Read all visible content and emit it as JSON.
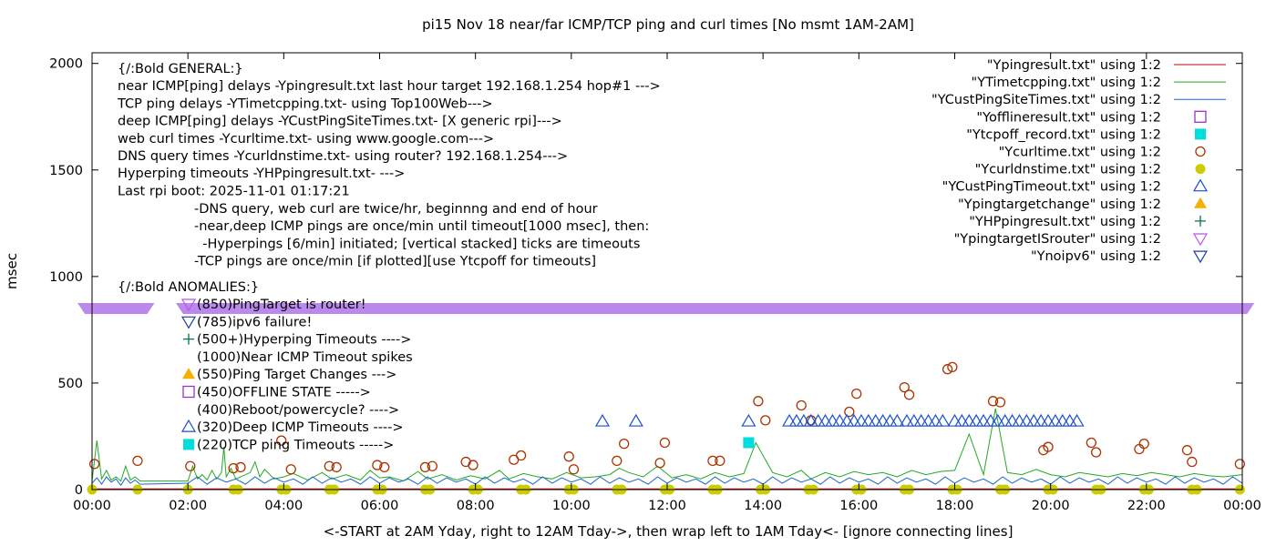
{
  "chart_data": {
    "type": "line",
    "title": "pi15 Nov 18  near/far ICMP/TCP ping and curl times [No msmt 1AM-2AM]",
    "xlabel": "<-START at 2AM Yday, right to 12AM Tday->, then wrap left to 1AM Tday<- [ignore connecting lines]",
    "ylabel": "msec",
    "xlim": [
      0,
      24
    ],
    "ylim": [
      0,
      2050
    ],
    "x_ticks": [
      {
        "v": 0,
        "label": "00:00"
      },
      {
        "v": 2,
        "label": "02:00"
      },
      {
        "v": 4,
        "label": "04:00"
      },
      {
        "v": 6,
        "label": "06:00"
      },
      {
        "v": 8,
        "label": "08:00"
      },
      {
        "v": 10,
        "label": "10:00"
      },
      {
        "v": 12,
        "label": "12:00"
      },
      {
        "v": 14,
        "label": "14:00"
      },
      {
        "v": 16,
        "label": "16:00"
      },
      {
        "v": 18,
        "label": "18:00"
      },
      {
        "v": 20,
        "label": "20:00"
      },
      {
        "v": 22,
        "label": "22:00"
      },
      {
        "v": 24,
        "label": "00:00"
      }
    ],
    "y_ticks": [
      {
        "v": 0,
        "label": "0"
      },
      {
        "v": 500,
        "label": "500"
      },
      {
        "v": 1000,
        "label": "1000"
      },
      {
        "v": 1500,
        "label": "1500"
      },
      {
        "v": 2000,
        "label": "2000"
      }
    ],
    "grid": false,
    "legend_position": "top-right",
    "legend": [
      {
        "label": "\"Ypingresult.txt\" using 1:2",
        "marker": "line",
        "color": "#cc0000"
      },
      {
        "label": "\"YTimetcpping.txt\" using 1:2",
        "marker": "line",
        "color": "#22aa22"
      },
      {
        "label": "\"YCustPingSiteTimes.txt\" using 1:2",
        "marker": "line",
        "color": "#1a66cc"
      },
      {
        "label": "\"Yofflineresult.txt\" using 1:2",
        "marker": "open-square",
        "color": "#9933cc"
      },
      {
        "label": "\"Ytcpoff_record.txt\" using 1:2",
        "marker": "filled-square",
        "color": "#00dddd"
      },
      {
        "label": "\"Ycurltime.txt\" using 1:2",
        "marker": "open-circle",
        "color": "#aa3300"
      },
      {
        "label": "\"Ycurldnstime.txt\" using 1:2",
        "marker": "filled-circle",
        "color": "#cccc00"
      },
      {
        "label": "\"YCustPingTimeout.txt\" using 1:2",
        "marker": "open-triangle",
        "color": "#1a4fcc"
      },
      {
        "label": "\"Ypingtargetchange\" using 1:2",
        "marker": "filled-triangle",
        "color": "#f5b000"
      },
      {
        "label": "\"YHPpingresult.txt\" using 1:2",
        "marker": "plus",
        "color": "#007744"
      },
      {
        "label": "\"YpingtargetISrouter\" using 1:2",
        "marker": "open-down-triangle",
        "color": "#bb55ee"
      },
      {
        "label": "\"Ynoipv6\" using 1:2",
        "marker": "open-down-triangle",
        "color": "#1a3fa0"
      }
    ],
    "annotations": {
      "general": [
        "{/:Bold GENERAL:}",
        "near ICMP[ping] delays -Ypingresult.txt last hour target 192.168.1.254 hop#1 --->",
        "TCP ping delays -YTimetcpping.txt- using Top100Web--->",
        "deep ICMP[ping] delays -YCustPingSiteTimes.txt- [X generic rpi]--->",
        "web curl times -Ycurltime.txt- using www.google.com--->",
        "DNS query times -Ycurldnstime.txt- using router? 192.168.1.254--->",
        "Hyperping timeouts -YHPpingresult.txt- --->",
        "Last rpi boot: 2025-11-01 01:17:21"
      ],
      "notes": [
        "-DNS query, web curl are twice/hr, beginnng and end of hour",
        "-near,deep ICMP pings are once/min until timeout[1000 msec], then:",
        "  -Hyperpings [6/min] initiated; [vertical stacked] ticks are timeouts",
        "-TCP pings are once/min [if plotted][use Ytcpoff for timeouts]"
      ],
      "anomalies_title": "{/:Bold ANOMALIES:}",
      "anomalies": [
        {
          "text": "(850)PingTarget is router!",
          "marker": "open-down-triangle",
          "color": "#bb55ee"
        },
        {
          "text": "(785)ipv6 failure!",
          "marker": "open-down-triangle",
          "color": "#1a3fa0"
        },
        {
          "text": "(500+)Hyperping Timeouts ---->",
          "marker": "plus",
          "color": "#007744"
        },
        {
          "text": "(1000)Near ICMP Timeout spikes",
          "marker": "none",
          "color": "#cc0000"
        },
        {
          "text": "(550)Ping Target Changes --->",
          "marker": "filled-triangle",
          "color": "#f5b000"
        },
        {
          "text": "(450)OFFLINE STATE ----->",
          "marker": "open-square",
          "color": "#9933cc"
        },
        {
          "text": "(400)Reboot/powercycle? ---->",
          "marker": "none",
          "color": "#000000"
        },
        {
          "text": "(320)Deep ICMP Timeouts ---->",
          "marker": "open-triangle",
          "color": "#1a4fcc"
        },
        {
          "text": "(220)TCP ping Timeouts ----->",
          "marker": "filled-square",
          "color": "#00dddd"
        }
      ]
    },
    "router_band": {
      "y": 850,
      "color": "#bb88ee",
      "segments": [
        [
          -0.15,
          1.15
        ],
        [
          1.9,
          24.1
        ]
      ]
    },
    "series": [
      {
        "name": "Ycurltime.txt",
        "marker": "open-circle",
        "color": "#aa3300",
        "x": [
          0.05,
          0.95,
          2.05,
          2.95,
          3.1,
          3.95,
          4.15,
          4.95,
          5.1,
          5.95,
          6.1,
          6.95,
          7.1,
          7.8,
          7.95,
          8.8,
          8.95,
          9.95,
          10.05,
          10.95,
          11.1,
          11.85,
          11.95,
          12.95,
          13.1,
          13.9,
          14.05,
          14.8,
          15.0,
          15.8,
          15.95,
          16.95,
          17.05,
          17.85,
          17.95,
          18.8,
          18.95,
          19.85,
          19.95,
          20.85,
          20.95,
          21.85,
          21.95,
          22.85,
          22.95,
          23.95
        ],
        "y": [
          120,
          135,
          110,
          100,
          105,
          230,
          95,
          110,
          105,
          115,
          105,
          105,
          110,
          130,
          115,
          140,
          160,
          155,
          95,
          135,
          215,
          125,
          220,
          135,
          135,
          415,
          325,
          395,
          325,
          365,
          450,
          480,
          445,
          565,
          575,
          415,
          410,
          185,
          200,
          220,
          175,
          190,
          215,
          185,
          130,
          120
        ]
      },
      {
        "name": "Ycurldnstime.txt",
        "marker": "filled-circle",
        "color": "#cccc00",
        "x": [
          0.0,
          0.95,
          2.0,
          2.95,
          3.05,
          3.95,
          4.05,
          4.95,
          5.05,
          5.95,
          6.05,
          6.95,
          7.05,
          7.95,
          8.05,
          8.95,
          9.05,
          9.95,
          10.05,
          10.95,
          11.05,
          11.95,
          12.05,
          12.95,
          13.05,
          13.95,
          14.05,
          14.95,
          15.05,
          15.95,
          16.05,
          16.95,
          17.05,
          17.95,
          18.05,
          18.95,
          19.05,
          19.95,
          20.05,
          20.95,
          21.05,
          21.95,
          22.05,
          22.95,
          23.05,
          23.95
        ],
        "y": [
          0,
          0,
          0,
          0,
          0,
          0,
          0,
          0,
          0,
          0,
          0,
          0,
          0,
          0,
          0,
          0,
          0,
          0,
          0,
          0,
          0,
          0,
          0,
          0,
          0,
          0,
          0,
          0,
          0,
          0,
          0,
          0,
          0,
          0,
          0,
          0,
          0,
          0,
          0,
          0,
          0,
          0,
          0,
          0,
          0,
          0
        ]
      },
      {
        "name": "YCustPingTimeout.txt",
        "marker": "open-triangle",
        "color": "#1a4fcc",
        "x": [
          10.65,
          11.35,
          13.7,
          14.55,
          14.7,
          14.85,
          15.0,
          15.15,
          15.3,
          15.45,
          15.6,
          15.75,
          15.9,
          16.05,
          16.2,
          16.35,
          16.5,
          16.65,
          16.8,
          17.0,
          17.15,
          17.3,
          17.45,
          17.6,
          17.75,
          18.0,
          18.15,
          18.3,
          18.45,
          18.6,
          18.75,
          18.9,
          19.05,
          19.2,
          19.35,
          19.5,
          19.65,
          19.8,
          19.95,
          20.1,
          20.25,
          20.4,
          20.55
        ],
        "y": [
          320,
          320,
          320,
          320,
          320,
          320,
          320,
          320,
          320,
          320,
          320,
          320,
          320,
          320,
          320,
          320,
          320,
          320,
          320,
          320,
          320,
          320,
          320,
          320,
          320,
          320,
          320,
          320,
          320,
          320,
          320,
          320,
          320,
          320,
          320,
          320,
          320,
          320,
          320,
          320,
          320,
          320,
          320
        ]
      },
      {
        "name": "Ytcpoff_record.txt",
        "marker": "filled-square",
        "color": "#00dddd",
        "x": [
          13.7
        ],
        "y": [
          220
        ]
      },
      {
        "name": "YTimetcpping.txt",
        "marker": "line",
        "color": "#22aa22",
        "x": [
          0.0,
          0.1,
          0.2,
          0.3,
          0.4,
          0.5,
          0.6,
          0.7,
          0.8,
          0.9,
          1.0,
          2.0,
          2.1,
          2.2,
          2.3,
          2.4,
          2.5,
          2.6,
          2.7,
          2.75,
          2.8,
          2.9,
          3.0,
          3.3,
          3.4,
          3.5,
          3.6,
          3.8,
          4.0,
          4.2,
          4.5,
          4.8,
          5.0,
          5.3,
          5.6,
          5.8,
          6.0,
          6.2,
          6.5,
          6.8,
          7.0,
          7.3,
          7.6,
          7.9,
          8.2,
          8.5,
          8.7,
          9.0,
          9.3,
          9.6,
          9.9,
          10.2,
          10.5,
          10.8,
          11.0,
          11.2,
          11.5,
          11.8,
          12.1,
          12.4,
          12.7,
          13.0,
          13.3,
          13.6,
          13.85,
          14.2,
          14.5,
          14.8,
          15.0,
          15.3,
          15.6,
          15.9,
          16.2,
          16.5,
          16.8,
          17.1,
          17.4,
          17.7,
          18.0,
          18.3,
          18.6,
          18.85,
          19.1,
          19.4,
          19.7,
          20.0,
          20.3,
          20.6,
          20.9,
          21.2,
          21.5,
          21.8,
          22.1,
          22.4,
          22.7,
          23.0,
          23.3,
          23.6,
          24.0
        ],
        "y": [
          40,
          230,
          50,
          90,
          45,
          60,
          40,
          110,
          45,
          60,
          40,
          40,
          110,
          50,
          70,
          45,
          90,
          50,
          80,
          200,
          60,
          100,
          50,
          80,
          130,
          60,
          95,
          50,
          60,
          75,
          45,
          80,
          50,
          70,
          45,
          90,
          55,
          60,
          40,
          85,
          50,
          70,
          45,
          65,
          50,
          90,
          50,
          75,
          60,
          50,
          80,
          55,
          60,
          70,
          100,
          80,
          60,
          110,
          55,
          70,
          50,
          80,
          60,
          75,
          220,
          80,
          60,
          90,
          50,
          80,
          60,
          85,
          70,
          80,
          60,
          90,
          70,
          85,
          90,
          260,
          70,
          380,
          80,
          70,
          95,
          70,
          60,
          80,
          70,
          60,
          75,
          65,
          80,
          70,
          60,
          75,
          65,
          60,
          70
        ]
      },
      {
        "name": "YCustPingSiteTimes.txt",
        "marker": "line",
        "color": "#1a66cc",
        "x": [
          0.0,
          0.1,
          0.2,
          0.3,
          0.4,
          0.5,
          0.6,
          0.7,
          0.8,
          0.9,
          1.0,
          2.0,
          2.2,
          2.4,
          2.6,
          2.8,
          3.0,
          3.2,
          3.4,
          3.6,
          3.8,
          4.0,
          4.2,
          4.4,
          4.6,
          4.8,
          5.0,
          5.2,
          5.4,
          5.6,
          5.8,
          6.0,
          6.2,
          6.4,
          6.6,
          6.8,
          7.0,
          7.2,
          7.4,
          7.6,
          7.8,
          8.0,
          8.2,
          8.4,
          8.6,
          8.8,
          9.0,
          9.2,
          9.4,
          9.6,
          9.8,
          10.0,
          10.2,
          10.4,
          10.6,
          10.8,
          11.0,
          11.2,
          11.4,
          11.6,
          11.8,
          12.0,
          12.2,
          12.4,
          12.6,
          12.8,
          13.0,
          13.2,
          13.4,
          13.6,
          13.8,
          14.0,
          14.2,
          14.4,
          14.6,
          14.8,
          15.0,
          15.2,
          15.4,
          15.6,
          15.8,
          16.0,
          16.2,
          16.4,
          16.6,
          16.8,
          17.0,
          17.2,
          17.4,
          17.6,
          17.8,
          18.0,
          18.2,
          18.4,
          18.6,
          18.8,
          19.0,
          19.2,
          19.4,
          19.6,
          19.8,
          20.0,
          20.2,
          20.4,
          20.6,
          20.8,
          21.0,
          21.2,
          21.4,
          21.6,
          21.8,
          22.0,
          22.2,
          22.4,
          22.6,
          22.8,
          23.0,
          23.2,
          23.4,
          23.6,
          23.8,
          24.0
        ],
        "y": [
          30,
          55,
          25,
          60,
          35,
          50,
          20,
          55,
          30,
          45,
          25,
          30,
          60,
          25,
          55,
          35,
          50,
          25,
          60,
          30,
          55,
          35,
          50,
          25,
          60,
          30,
          55,
          35,
          50,
          25,
          60,
          30,
          55,
          35,
          50,
          25,
          60,
          30,
          55,
          35,
          50,
          25,
          60,
          30,
          55,
          35,
          50,
          25,
          60,
          30,
          55,
          35,
          50,
          25,
          60,
          30,
          55,
          35,
          50,
          25,
          60,
          30,
          55,
          35,
          50,
          25,
          60,
          30,
          55,
          35,
          50,
          25,
          60,
          30,
          55,
          35,
          50,
          25,
          60,
          30,
          55,
          35,
          50,
          25,
          60,
          30,
          55,
          35,
          50,
          25,
          60,
          30,
          55,
          35,
          50,
          25,
          60,
          30,
          55,
          35,
          50,
          25,
          60,
          30,
          55,
          35,
          50,
          25,
          60,
          30,
          55,
          35,
          50,
          25,
          60,
          30,
          55,
          35,
          50,
          25,
          60,
          30
        ]
      },
      {
        "name": "Ypingresult.txt",
        "marker": "line",
        "color": "#cc0000",
        "x": [
          0.0,
          1.0,
          2.0,
          6.0,
          12.0,
          18.0,
          24.0
        ],
        "y": [
          3,
          3,
          3,
          3,
          3,
          3,
          3
        ]
      }
    ]
  }
}
